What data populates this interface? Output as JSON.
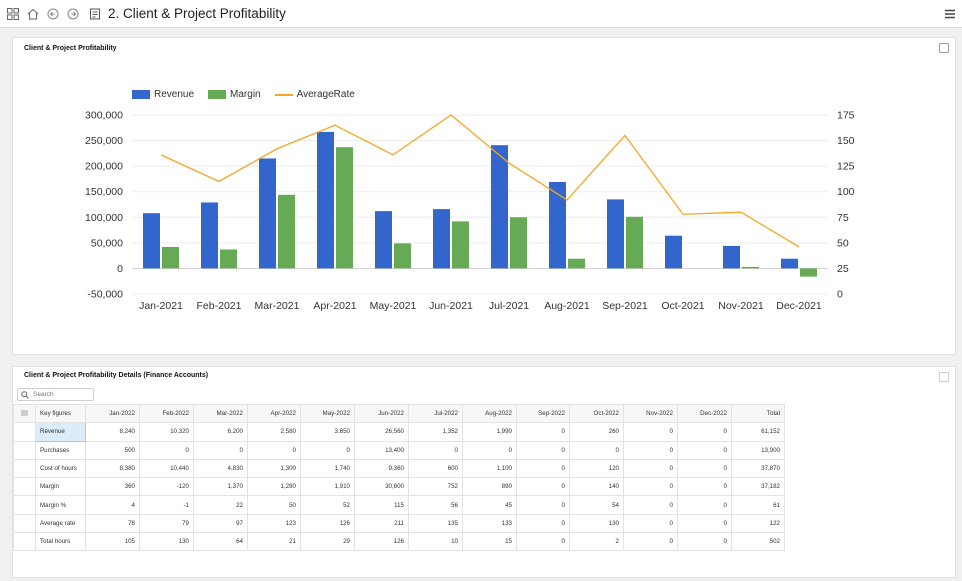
{
  "header": {
    "title": "2. Client & Project Profitability"
  },
  "chart_panel": {
    "title": "Client & Project Profitability"
  },
  "chart_data": {
    "type": "bar",
    "title": "",
    "categories": [
      "Jan-2021",
      "Feb-2021",
      "Mar-2021",
      "Apr-2021",
      "May-2021",
      "Jun-2021",
      "Jul-2021",
      "Aug-2021",
      "Sep-2021",
      "Oct-2021",
      "Nov-2021",
      "Dec-2021"
    ],
    "series": [
      {
        "name": "Revenue",
        "type": "bar",
        "axis": "left",
        "color": "#3366cc",
        "values": [
          108000,
          129000,
          215000,
          267000,
          112000,
          116000,
          241000,
          169000,
          135000,
          64000,
          44000,
          19000
        ]
      },
      {
        "name": "Margin",
        "type": "bar",
        "axis": "left",
        "color": "#66aa55",
        "values": [
          42000,
          37000,
          144000,
          237000,
          49000,
          92000,
          100000,
          19000,
          101000,
          0,
          3000,
          -16000
        ]
      },
      {
        "name": "AverageRate",
        "type": "line",
        "axis": "right",
        "color": "#f5a623",
        "values": [
          136,
          110,
          142,
          165,
          136,
          175,
          128,
          92,
          155,
          78,
          80,
          46
        ]
      }
    ],
    "y_left": {
      "ylim": [
        -50000,
        300000
      ],
      "ticks": [
        "-50,000",
        "0",
        "50,000",
        "100,000",
        "150,000",
        "200,000",
        "250,000",
        "300,000"
      ]
    },
    "y_right": {
      "ylim": [
        0,
        175
      ],
      "ticks": [
        "0",
        "25",
        "50",
        "75",
        "100",
        "125",
        "150",
        "175"
      ]
    },
    "grid": true,
    "legend": "top-left"
  },
  "table_panel": {
    "title": "Client & Project Profitability Details (Finance Accounts)",
    "search_placeholder": "Search",
    "columns": [
      "Key figures",
      "Jan-2022",
      "Feb-2022",
      "Mar-2022",
      "Apr-2022",
      "May-2022",
      "Jun-2022",
      "Jul-2022",
      "Aug-2022",
      "Sep-2022",
      "Oct-2022",
      "Nov-2022",
      "Dec-2022",
      "Total"
    ],
    "rows": [
      {
        "label": "Revenue",
        "values": [
          "8,240",
          "10,320",
          "6,200",
          "2,580",
          "3,650",
          "26,560",
          "1,352",
          "1,990",
          "0",
          "260",
          "0",
          "0",
          "61,152"
        ]
      },
      {
        "label": "Purchases",
        "values": [
          "500",
          "0",
          "0",
          "0",
          "0",
          "13,400",
          "0",
          "0",
          "0",
          "0",
          "0",
          "0",
          "13,900"
        ]
      },
      {
        "label": "Cost of hours",
        "values": [
          "8,380",
          "10,440",
          "4,830",
          "1,300",
          "1,740",
          "9,360",
          "600",
          "1,100",
          "0",
          "120",
          "0",
          "0",
          "37,870"
        ]
      },
      {
        "label": "Margin",
        "values": [
          "360",
          "-120",
          "1,370",
          "1,280",
          "1,910",
          "30,600",
          "752",
          "890",
          "0",
          "140",
          "0",
          "0",
          "37,182"
        ]
      },
      {
        "label": "Margin %",
        "values": [
          "4",
          "-1",
          "22",
          "50",
          "52",
          "115",
          "56",
          "45",
          "0",
          "54",
          "0",
          "0",
          "61"
        ]
      },
      {
        "label": "Average rate",
        "values": [
          "78",
          "79",
          "97",
          "123",
          "126",
          "211",
          "135",
          "133",
          "0",
          "130",
          "0",
          "0",
          "122"
        ]
      },
      {
        "label": "Total hours",
        "values": [
          "105",
          "130",
          "64",
          "21",
          "29",
          "126",
          "10",
          "15",
          "0",
          "2",
          "0",
          "0",
          "502"
        ]
      }
    ]
  },
  "icons": [
    "grid-icon",
    "home-icon",
    "back-icon",
    "forward-icon",
    "report-icon",
    "hamburger-menu-icon",
    "expand-icon",
    "search-icon",
    "row-menu-icon"
  ]
}
